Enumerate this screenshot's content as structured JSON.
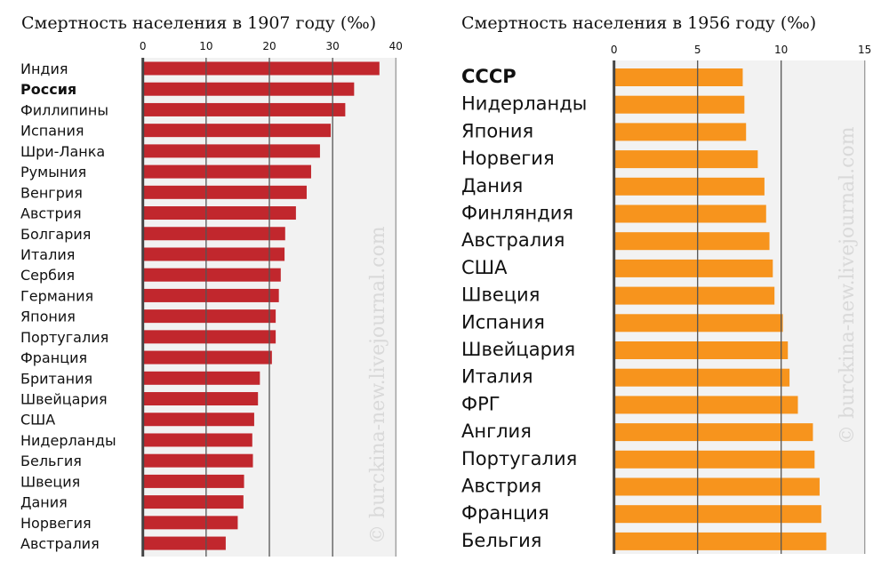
{
  "chart_data": [
    {
      "type": "bar",
      "orientation": "horizontal",
      "title": "Смертность населения в 1907 году (‰)",
      "categories": [
        "Индия",
        "Россия",
        "Филлипины",
        "Испания",
        "Шри-Ланка",
        "Румыния",
        "Венгрия",
        "Австрия",
        "Болгария",
        "Италия",
        "Сербия",
        "Германия",
        "Япония",
        "Португалия",
        "Франция",
        "Британия",
        "Швейцария",
        "США",
        "Нидерланды",
        "Бельгия",
        "Швеция",
        "Дания",
        "Норвегия",
        "Австралия"
      ],
      "values": [
        37.4,
        33.4,
        32.0,
        29.7,
        28.0,
        26.6,
        25.9,
        24.2,
        22.5,
        22.4,
        21.8,
        21.5,
        21.0,
        21.0,
        20.4,
        18.5,
        18.2,
        17.6,
        17.3,
        17.4,
        16.0,
        15.9,
        15.0,
        13.1
      ],
      "highlight": "Россия",
      "xlim": [
        0,
        40
      ],
      "ticks": [
        "0",
        "10",
        "20",
        "30",
        "40"
      ],
      "grid": true,
      "color": "#c1272d"
    },
    {
      "type": "bar",
      "orientation": "horizontal",
      "title": "Смертность населения в 1956 году (‰)",
      "categories": [
        "СССР",
        "Нидерланды",
        "Япония",
        "Норвегия",
        "Дания",
        "Финляндия",
        "Австралия",
        "США",
        "Швеция",
        "Испания",
        "Швейцария",
        "Италия",
        "ФРГ",
        "Англия",
        "Португалия",
        "Австрия",
        "Франция",
        "Бельгия"
      ],
      "values": [
        7.7,
        7.8,
        7.9,
        8.6,
        9.0,
        9.1,
        9.3,
        9.5,
        9.6,
        10.1,
        10.4,
        10.5,
        11.0,
        11.9,
        12.0,
        12.3,
        12.4,
        12.7
      ],
      "highlight": "СССР",
      "xlim": [
        0,
        15
      ],
      "ticks": [
        "0",
        "5",
        "10",
        "15"
      ],
      "grid": true,
      "color": "#f7941d"
    }
  ],
  "watermark": "© burckina-new.livejournal.com"
}
